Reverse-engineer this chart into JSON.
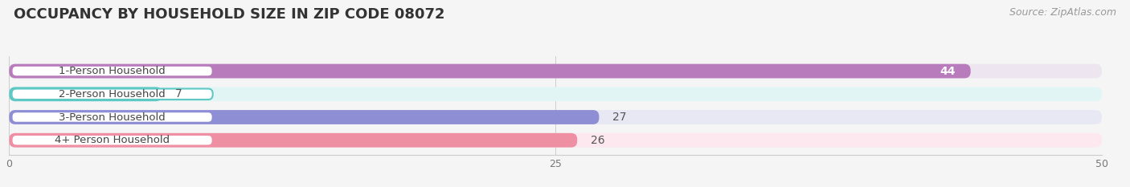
{
  "title": "OCCUPANCY BY HOUSEHOLD SIZE IN ZIP CODE 08072",
  "source": "Source: ZipAtlas.com",
  "categories": [
    "1-Person Household",
    "2-Person Household",
    "3-Person Household",
    "4+ Person Household"
  ],
  "values": [
    44,
    7,
    27,
    26
  ],
  "bar_colors": [
    "#b87cbd",
    "#5ec8c4",
    "#8e8ed4",
    "#ef8fa4"
  ],
  "bar_bg_colors": [
    "#ede5ef",
    "#e0f5f4",
    "#e8e8f5",
    "#fce8ee"
  ],
  "value_colors": [
    "white",
    "#555555",
    "#555555",
    "#555555"
  ],
  "xlim": [
    0,
    50
  ],
  "xticks": [
    0,
    25,
    50
  ],
  "background_color": "#f5f5f5",
  "title_fontsize": 13,
  "label_fontsize": 9.5,
  "value_fontsize": 10,
  "source_fontsize": 9
}
